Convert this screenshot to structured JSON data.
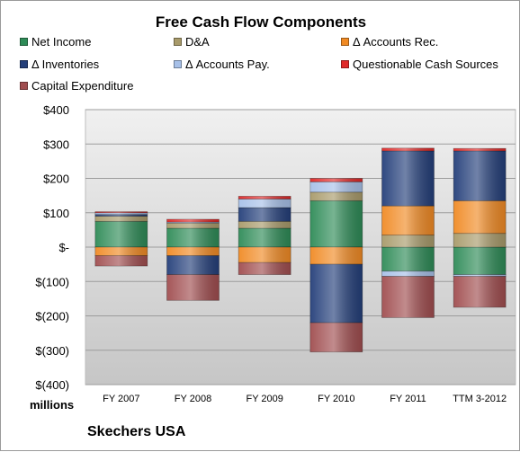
{
  "chart_data": {
    "type": "bar",
    "stacked": true,
    "title": "Free Cash Flow Components",
    "ylabel": "millions",
    "caption": "Skechers USA",
    "yticks": [
      "$400",
      "$300",
      "$200",
      "$100",
      "$-",
      "$(100)",
      "$(200)",
      "$(300)",
      "$(400)"
    ],
    "ylim": [
      -400,
      400
    ],
    "categories": [
      "FY 2007",
      "FY 2008",
      "FY 2009",
      "FY 2010",
      "FY 2011",
      "TTM 3-2012"
    ],
    "grid": true,
    "legend_position": "top",
    "series": [
      {
        "name": "Net Income",
        "color": "#2e8b57",
        "values": [
          75,
          55,
          55,
          135,
          -70,
          -80
        ]
      },
      {
        "name": "D&A",
        "color": "#a89a6a",
        "values": [
          15,
          15,
          20,
          25,
          35,
          40
        ]
      },
      {
        "name": "Δ Accounts Rec.",
        "color": "#f08a24",
        "values": [
          -25,
          -25,
          -45,
          -50,
          85,
          95
        ]
      },
      {
        "name": "Δ Inventories",
        "color": "#243f7a",
        "values": [
          5,
          -55,
          40,
          -170,
          160,
          145
        ]
      },
      {
        "name": "Δ Accounts Pay.",
        "color": "#a7c0e8",
        "values": [
          5,
          3,
          25,
          30,
          -15,
          -5
        ]
      },
      {
        "name": "Questionable Cash Sources",
        "color": "#e02828",
        "values": [
          3,
          8,
          8,
          10,
          8,
          7
        ]
      },
      {
        "name": "Capital Expenditure",
        "color": "#a04d4f",
        "values": [
          -30,
          -75,
          -35,
          -85,
          -120,
          -90
        ]
      }
    ]
  }
}
